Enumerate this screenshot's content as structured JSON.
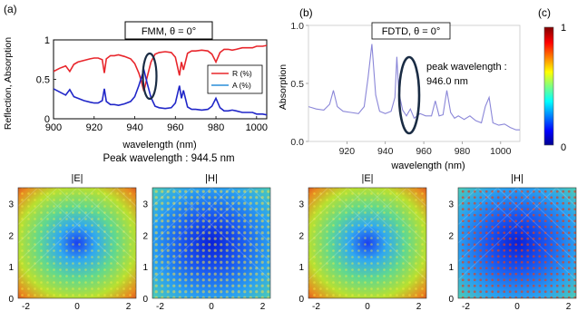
{
  "panels": {
    "a": {
      "label": "(a)",
      "title": "FMM, θ = 0°",
      "ylabel": "Reflection, Absorption",
      "xlabel": "wavelength (nm)",
      "xticks": [
        "900",
        "920",
        "940",
        "960",
        "980",
        "1000"
      ],
      "yticks": [
        "0",
        "0.5",
        "1"
      ],
      "legend": [
        "R (%)",
        "A (%)"
      ],
      "caption": "Peak wavelength : 944.5 nm"
    },
    "b": {
      "label": "(b)",
      "title": "FDTD, θ = 0°",
      "ylabel": "Absorption",
      "xlabel": "wavelength (nm)",
      "xticks": [
        "920",
        "940",
        "960",
        "980",
        "1000"
      ],
      "yticks": [
        "0.0",
        "0.5",
        "1.0"
      ],
      "annotation_line1": "peak wavelength :",
      "annotation_line2": "946.0 nm"
    },
    "c": {
      "label": "(c)",
      "colorbar_max": "1",
      "colorbar_min": "0"
    }
  },
  "field_maps": {
    "fmm_e": {
      "title": "|E|",
      "yticks": [
        "0",
        "1",
        "2",
        "3"
      ],
      "xticks": [
        "-2",
        "0",
        "2"
      ]
    },
    "fmm_h": {
      "title": "|H|",
      "yticks": [
        "0",
        "1",
        "2",
        "3"
      ],
      "xticks": [
        "-2",
        "0",
        "2"
      ]
    },
    "fdtd_e": {
      "title": "|E|",
      "yticks": [
        "0",
        "1",
        "2",
        "3"
      ],
      "xticks": [
        "-2",
        "0",
        "2"
      ]
    },
    "fdtd_h": {
      "title": "|H|",
      "yticks": [
        "0",
        "1",
        "2",
        "3"
      ],
      "xticks": [
        "-2",
        "0",
        "2"
      ]
    }
  },
  "colors": {
    "reflection": "#e8262c",
    "absorption_fmm": "#2026c8",
    "absorption_fdtd": "#8a86d8",
    "highlight_ellipse": "#1a2c44"
  },
  "chart_data": [
    {
      "type": "line",
      "panel": "a",
      "xlabel": "wavelength (nm)",
      "ylabel": "Reflection, Absorption",
      "xlim": [
        900,
        1005
      ],
      "ylim": [
        0,
        1
      ],
      "series": [
        {
          "name": "R (%)",
          "x": [
            900,
            903,
            906,
            908,
            910,
            912,
            915,
            918,
            920,
            922,
            924,
            925,
            926,
            928,
            930,
            932,
            935,
            938,
            940,
            942,
            943,
            944.5,
            946,
            948,
            950,
            952,
            955,
            958,
            960,
            962,
            963,
            964,
            966,
            968,
            970,
            973,
            976,
            978,
            980,
            982,
            984,
            986,
            988,
            990,
            993,
            996,
            998,
            1000,
            1003,
            1005
          ],
          "y": [
            0.6,
            0.64,
            0.67,
            0.6,
            0.69,
            0.72,
            0.74,
            0.76,
            0.77,
            0.77,
            0.75,
            0.58,
            0.76,
            0.8,
            0.8,
            0.81,
            0.79,
            0.76,
            0.7,
            0.58,
            0.5,
            0.35,
            0.52,
            0.72,
            0.82,
            0.84,
            0.85,
            0.84,
            0.78,
            0.55,
            0.72,
            0.62,
            0.83,
            0.86,
            0.86,
            0.87,
            0.86,
            0.82,
            0.72,
            0.84,
            0.88,
            0.88,
            0.87,
            0.88,
            0.9,
            0.9,
            0.9,
            0.92,
            0.92,
            0.93
          ]
        },
        {
          "name": "A (%)",
          "x": [
            900,
            903,
            906,
            908,
            910,
            912,
            915,
            918,
            920,
            922,
            924,
            925,
            926,
            928,
            930,
            932,
            935,
            938,
            940,
            942,
            943,
            944.5,
            946,
            948,
            950,
            952,
            955,
            958,
            960,
            962,
            963,
            964,
            966,
            968,
            970,
            973,
            976,
            978,
            980,
            982,
            984,
            986,
            988,
            990,
            993,
            996,
            998,
            1000,
            1003,
            1005
          ],
          "y": [
            0.38,
            0.34,
            0.3,
            0.37,
            0.28,
            0.26,
            0.23,
            0.21,
            0.2,
            0.2,
            0.23,
            0.38,
            0.22,
            0.18,
            0.18,
            0.17,
            0.19,
            0.22,
            0.28,
            0.42,
            0.5,
            0.62,
            0.46,
            0.27,
            0.16,
            0.14,
            0.13,
            0.14,
            0.2,
            0.42,
            0.26,
            0.36,
            0.15,
            0.12,
            0.12,
            0.11,
            0.12,
            0.16,
            0.26,
            0.14,
            0.1,
            0.1,
            0.11,
            0.1,
            0.08,
            0.08,
            0.08,
            0.06,
            0.06,
            0.05
          ]
        }
      ]
    },
    {
      "type": "line",
      "panel": "b",
      "xlabel": "wavelength (nm)",
      "ylabel": "Absorption",
      "xlim": [
        900,
        1010
      ],
      "ylim": [
        0,
        1
      ],
      "series": [
        {
          "x": [
            900,
            904,
            908,
            911,
            913,
            915,
            918,
            922,
            926,
            929,
            931,
            933,
            935,
            937,
            940,
            943,
            945,
            946,
            947,
            949,
            951,
            953,
            955,
            958,
            961,
            964,
            966,
            968,
            970,
            972,
            974,
            976,
            978,
            981,
            984,
            987,
            990,
            992,
            994,
            996,
            999,
            1002,
            1005,
            1008,
            1010
          ],
          "y": [
            0.3,
            0.28,
            0.27,
            0.32,
            0.44,
            0.3,
            0.26,
            0.25,
            0.24,
            0.3,
            0.55,
            0.84,
            0.4,
            0.26,
            0.24,
            0.26,
            0.38,
            0.73,
            0.42,
            0.27,
            0.22,
            0.28,
            0.2,
            0.24,
            0.22,
            0.22,
            0.35,
            0.22,
            0.23,
            0.44,
            0.25,
            0.2,
            0.22,
            0.19,
            0.22,
            0.18,
            0.16,
            0.3,
            0.38,
            0.16,
            0.14,
            0.15,
            0.12,
            0.1,
            0.1
          ]
        }
      ]
    }
  ]
}
